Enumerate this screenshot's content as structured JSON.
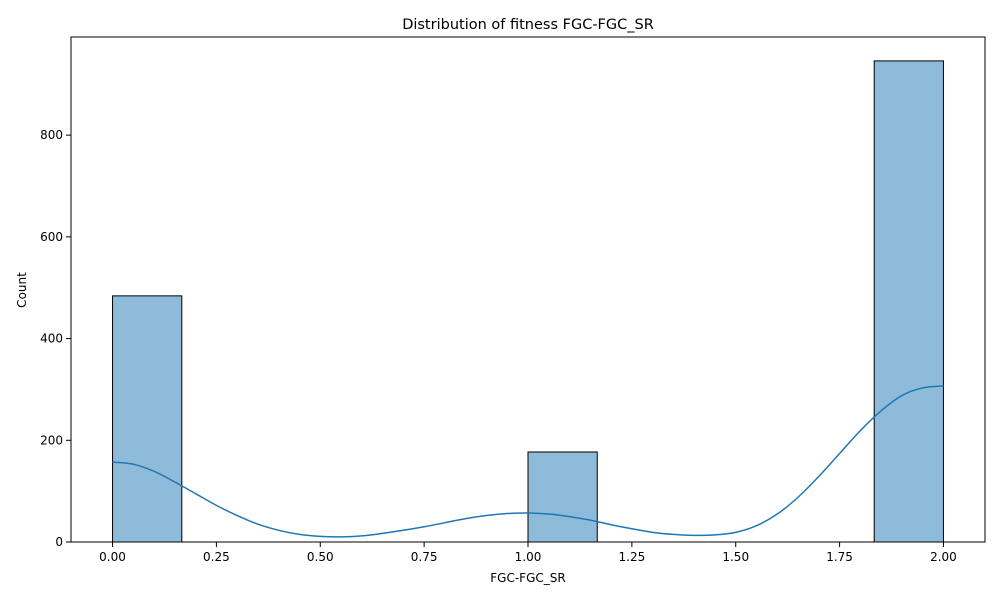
{
  "chart_data": {
    "type": "bar",
    "title": "Distribution of fitness FGC-FGC_SR",
    "xlabel": "FGC-FGC_SR",
    "ylabel": "Count",
    "xlim": [
      -0.1,
      2.1
    ],
    "ylim": [
      0,
      993
    ],
    "x_ticks": [
      "0.00",
      "0.25",
      "0.50",
      "0.75",
      "1.00",
      "1.25",
      "1.50",
      "1.75",
      "2.00"
    ],
    "x_tick_values": [
      0,
      0.25,
      0.5,
      0.75,
      1.0,
      1.25,
      1.5,
      1.75,
      2.0
    ],
    "y_ticks": [
      "0",
      "200",
      "400",
      "600",
      "800"
    ],
    "y_tick_values": [
      0,
      200,
      400,
      600,
      800
    ],
    "bins": [
      {
        "x0": 0.0,
        "x1": 0.1667,
        "count": 484
      },
      {
        "x0": 1.0,
        "x1": 1.1667,
        "count": 177
      },
      {
        "x0": 1.8333,
        "x1": 2.0,
        "count": 946
      }
    ],
    "kde": {
      "x": [
        0.0,
        0.05,
        0.1,
        0.15,
        0.2,
        0.25,
        0.3,
        0.35,
        0.4,
        0.45,
        0.5,
        0.55,
        0.6,
        0.65,
        0.7,
        0.75,
        0.8,
        0.85,
        0.9,
        0.95,
        1.0,
        1.05,
        1.1,
        1.15,
        1.2,
        1.25,
        1.3,
        1.35,
        1.4,
        1.45,
        1.5,
        1.55,
        1.6,
        1.65,
        1.7,
        1.75,
        1.8,
        1.85,
        1.9,
        1.95,
        2.0
      ],
      "y": [
        157,
        153,
        139,
        118,
        95,
        72,
        52,
        35,
        23,
        15,
        11,
        10,
        12,
        17,
        23,
        30,
        38,
        46,
        52,
        56,
        57,
        55,
        50,
        43,
        34,
        26,
        19,
        15,
        13,
        14,
        19,
        32,
        55,
        88,
        129,
        174,
        219,
        258,
        288,
        303,
        307
      ]
    },
    "colors": {
      "bar_fill": "#8fbbda",
      "bar_edge": "#000000",
      "kde_line": "#1f77b4"
    },
    "grid": false,
    "legend": "none"
  }
}
